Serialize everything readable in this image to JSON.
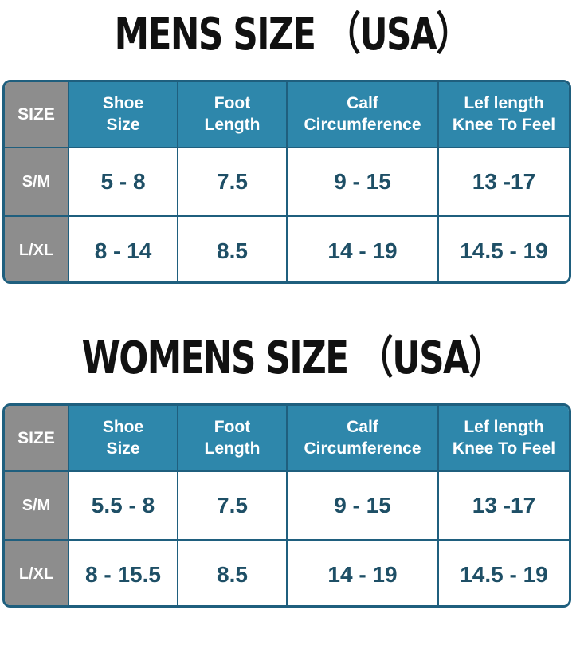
{
  "men": {
    "title": "MENS SIZE （USA）",
    "headers": {
      "size": "SIZE",
      "shoe_size": [
        "Shoe",
        "Size"
      ],
      "foot_length": [
        "Foot",
        "Length"
      ],
      "calf_circumference": [
        "Calf",
        "Circumference"
      ],
      "leg_length": [
        "Lef length",
        "Knee To Feel"
      ]
    },
    "rows": [
      {
        "size": "S/M",
        "shoe_size": "5 - 8",
        "foot_length": "7.5",
        "calf_circumference": "9 - 15",
        "leg_length": "13 -17"
      },
      {
        "size": "L/XL",
        "shoe_size": "8 - 14",
        "foot_length": "8.5",
        "calf_circumference": "14 - 19",
        "leg_length": "14.5 - 19"
      }
    ]
  },
  "women": {
    "title": "WOMENS SIZE （USA）",
    "headers": {
      "size": "SIZE",
      "shoe_size": [
        "Shoe",
        "Size"
      ],
      "foot_length": [
        "Foot",
        "Length"
      ],
      "calf_circumference": [
        "Calf",
        "Circumference"
      ],
      "leg_length": [
        "Lef length",
        "Knee To Feel"
      ]
    },
    "rows": [
      {
        "size": "S/M",
        "shoe_size": "5.5 - 8",
        "foot_length": "7.5",
        "calf_circumference": "9 - 15",
        "leg_length": "13 -17"
      },
      {
        "size": "L/XL",
        "shoe_size": "8 - 15.5",
        "foot_length": "8.5",
        "calf_circumference": "14 - 19",
        "leg_length": "14.5 - 19"
      }
    ]
  },
  "colors": {
    "header_blue": "#2e87ab",
    "border_blue": "#1f5f7e",
    "label_gray": "#8d8d8d",
    "value_text": "#1e4f66",
    "title_text": "#111111"
  }
}
